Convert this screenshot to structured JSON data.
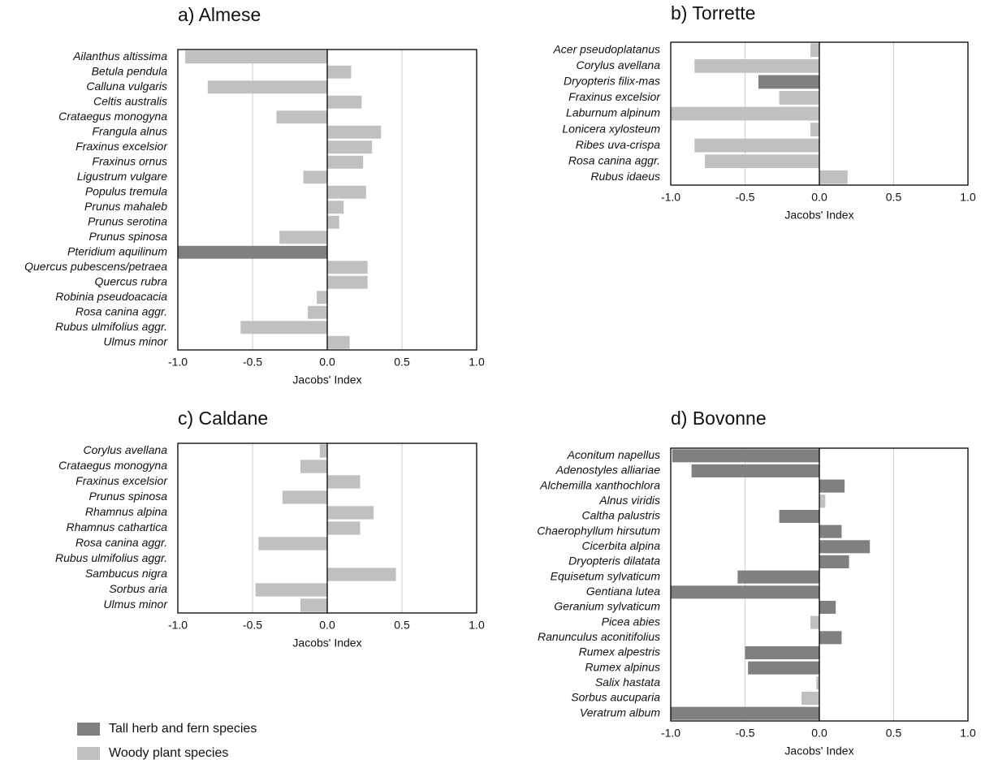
{
  "chart_data": [
    {
      "type": "bar",
      "orientation": "horizontal",
      "title": "a) Almese",
      "xlabel": "Jacobs' Index",
      "categories": [
        "Ailanthus altissima",
        "Betula pendula",
        "Calluna vulgaris",
        "Celtis australis",
        "Crataegus monogyna",
        "Frangula alnus",
        "Fraxinus excelsior",
        "Fraxinus ornus",
        "Ligustrum vulgare",
        "Populus tremula",
        "Prunus mahaleb",
        "Prunus serotina",
        "Prunus spinosa",
        "Pteridium aquilinum",
        "Quercus pubescens/petraea",
        "Quercus rubra",
        "Robinia pseudoacacia",
        "Rosa canina aggr.",
        "Rubus ulmifolius aggr.",
        "Ulmus minor"
      ],
      "values": [
        -0.95,
        0.16,
        -0.8,
        0.23,
        -0.34,
        0.36,
        0.3,
        0.24,
        -0.16,
        0.26,
        0.11,
        0.08,
        -0.32,
        -1.0,
        0.27,
        0.27,
        -0.07,
        -0.13,
        -0.58,
        0.15
      ],
      "colors": [
        "#c0c0c0",
        "#c0c0c0",
        "#c0c0c0",
        "#c0c0c0",
        "#c0c0c0",
        "#c0c0c0",
        "#c0c0c0",
        "#c0c0c0",
        "#c0c0c0",
        "#c0c0c0",
        "#c0c0c0",
        "#c0c0c0",
        "#c0c0c0",
        "#808080",
        "#c0c0c0",
        "#c0c0c0",
        "#c0c0c0",
        "#c0c0c0",
        "#c0c0c0",
        "#c0c0c0"
      ],
      "xlim": [
        -1,
        1
      ],
      "xticks": [
        {
          "value": -1,
          "label": "-1.0"
        },
        -0.5,
        {
          "value": 0,
          "label": "0.0"
        },
        0.5,
        {
          "value": 1,
          "label": "1.0"
        }
      ],
      "grid": true
    },
    {
      "type": "bar",
      "orientation": "horizontal",
      "title": "b) Torrette",
      "xlabel": "Jacobs' Index",
      "categories": [
        "Acer pseudoplatanus",
        "Corylus avellana",
        "Dryopteris filix-mas",
        "Fraxinus excelsior",
        "Laburnum alpinum",
        "Lonicera xylosteum",
        "Ribes uva-crispa",
        "Rosa canina aggr.",
        "Rubus idaeus"
      ],
      "values": [
        -0.06,
        -0.84,
        -0.41,
        -0.27,
        -1.0,
        -0.06,
        -0.84,
        -0.77,
        0.19
      ],
      "colors": [
        "#c0c0c0",
        "#c0c0c0",
        "#808080",
        "#c0c0c0",
        "#c0c0c0",
        "#c0c0c0",
        "#c0c0c0",
        "#c0c0c0",
        "#c0c0c0"
      ],
      "xlim": [
        -1,
        1
      ],
      "xticks": [
        {
          "value": -1,
          "label": "-1.0"
        },
        -0.5,
        {
          "value": 0,
          "label": "0.0"
        },
        0.5,
        {
          "value": 1,
          "label": "1.0"
        }
      ],
      "grid": true
    },
    {
      "type": "bar",
      "orientation": "horizontal",
      "title": "c) Caldane",
      "xlabel": "Jacobs' Index",
      "categories": [
        "Corylus avellana",
        "Crataegus monogyna",
        "Fraxinus excelsior",
        "Prunus spinosa",
        "Rhamnus alpina",
        "Rhamnus cathartica",
        "Rosa canina aggr.",
        "Rubus ulmifolius aggr.",
        "Sambucus nigra",
        "Sorbus aria",
        "Ulmus minor"
      ],
      "values": [
        -0.05,
        -0.18,
        0.22,
        -0.3,
        0.31,
        0.22,
        -0.46,
        0,
        0.46,
        -0.48,
        -0.18
      ],
      "colors": [
        "#c0c0c0",
        "#c0c0c0",
        "#c0c0c0",
        "#c0c0c0",
        "#c0c0c0",
        "#c0c0c0",
        "#c0c0c0",
        "#c0c0c0",
        "#c0c0c0",
        "#c0c0c0",
        "#c0c0c0"
      ],
      "xlim": [
        -1,
        1
      ],
      "xticks": [
        {
          "value": -1,
          "label": "-1.0"
        },
        -0.5,
        {
          "value": 0,
          "label": "0.0"
        },
        0.5,
        {
          "value": 1,
          "label": "1.0"
        }
      ],
      "grid": true
    },
    {
      "type": "bar",
      "orientation": "horizontal",
      "title": "d) Bovonne",
      "xlabel": "Jacobs' Index",
      "categories": [
        "Aconitum napellus",
        "Adenostyles alliariae",
        "Alchemilla xanthochlora",
        "Alnus viridis",
        "Caltha palustris",
        "Chaerophyllum hirsutum",
        "Cicerbita alpina",
        "Dryopteris dilatata",
        "Equisetum sylvaticum",
        "Gentiana lutea",
        "Geranium sylvaticum",
        "Picea abies",
        "Ranunculus aconitifolius",
        "Rumex alpestris",
        "Rumex alpinus",
        "Salix hastata",
        "Sorbus aucuparia",
        "Veratrum album"
      ],
      "values": [
        -0.99,
        -0.86,
        0.17,
        0.04,
        -0.27,
        0.15,
        0.34,
        0.2,
        -0.55,
        -1.0,
        0.11,
        -0.06,
        0.15,
        -0.5,
        -0.48,
        -0.02,
        -0.12,
        -1.0
      ],
      "colors": [
        "#808080",
        "#808080",
        "#808080",
        "#c0c0c0",
        "#808080",
        "#808080",
        "#808080",
        "#808080",
        "#808080",
        "#808080",
        "#808080",
        "#c0c0c0",
        "#808080",
        "#808080",
        "#808080",
        "#c0c0c0",
        "#c0c0c0",
        "#808080"
      ],
      "xlim": [
        -1,
        1
      ],
      "xticks": [
        {
          "value": -1,
          "label": "-1.0"
        },
        -0.5,
        {
          "value": 0,
          "label": "0.0"
        },
        0.5,
        {
          "value": 1,
          "label": "1.0"
        }
      ],
      "grid": true
    }
  ],
  "legend": [
    {
      "name": "Tall herb and fern species",
      "color": "#808080"
    },
    {
      "name": "Woody plant species",
      "color": "#c0c0c0"
    }
  ]
}
